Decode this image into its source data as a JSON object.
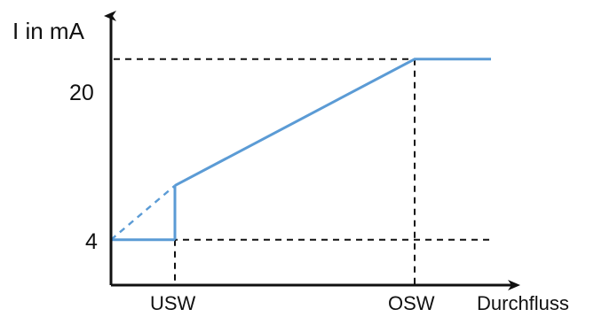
{
  "chart_data": {
    "type": "line",
    "title": "",
    "ylabel": "I in mA",
    "xlabel": "Durchfluss",
    "y_ticks": [
      4,
      20
    ],
    "x_ticks": [
      "USW",
      "OSW"
    ],
    "ylim": [
      0,
      22
    ],
    "series": [
      {
        "values": [
          {
            "x": "USW",
            "y": 4
          },
          {
            "x": "USW",
            "y": 8.8
          },
          {
            "x": "OSW",
            "y": 20
          },
          {
            "x": "beyond OSW",
            "y": 20
          }
        ]
      }
    ],
    "colors": {
      "line": "#5b9bd5",
      "axis": "#111111",
      "guide": "#111111"
    },
    "grid": false,
    "legend": "none"
  }
}
